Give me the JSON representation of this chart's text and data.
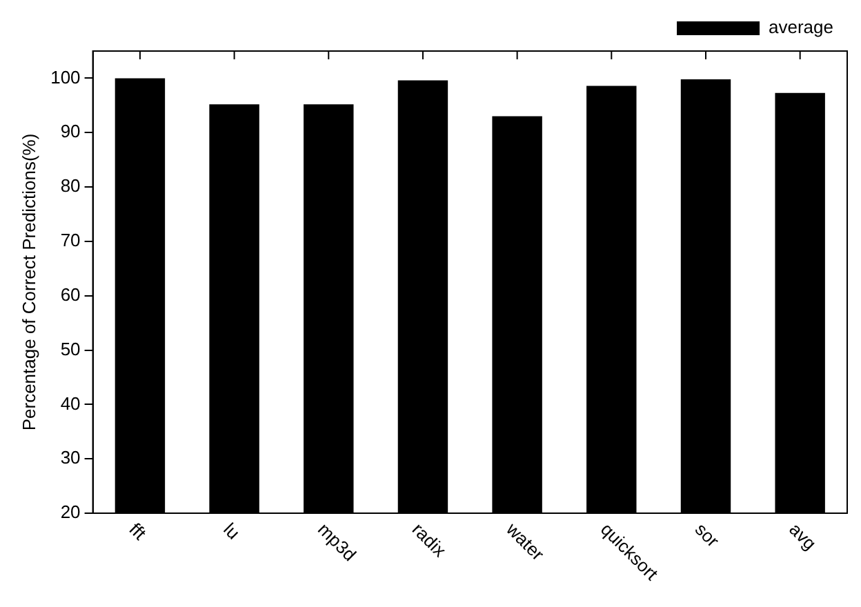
{
  "chart_data": {
    "type": "bar",
    "ylabel": "Percentage of Correct Predictions(%)",
    "categories": [
      "fft",
      "lu",
      "mp3d",
      "radix",
      "water",
      "quicksort",
      "sor",
      "avg"
    ],
    "series": [
      {
        "name": "average",
        "color": "#000000",
        "values": [
          100,
          95.2,
          95.2,
          99.6,
          93,
          98.6,
          99.8,
          97.3
        ]
      }
    ],
    "ylim": [
      20,
      105
    ],
    "yticks": [
      20,
      30,
      40,
      50,
      60,
      70,
      80,
      90,
      100
    ],
    "grid": false,
    "legend": "top right"
  }
}
